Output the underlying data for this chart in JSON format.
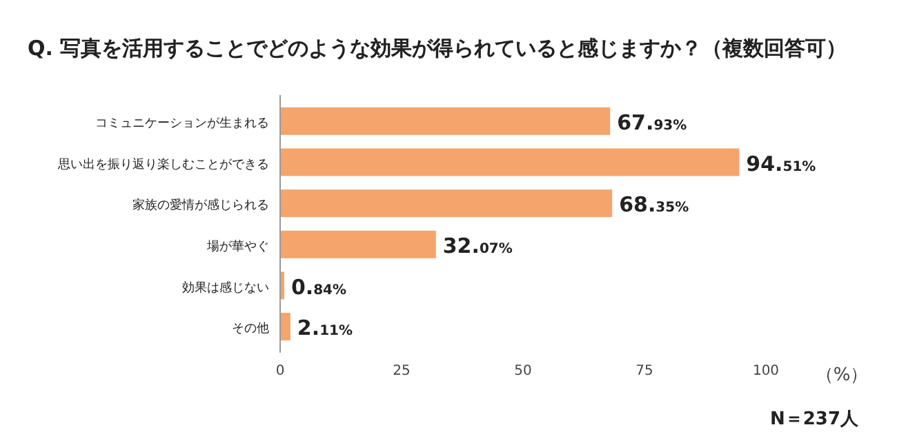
{
  "chart_data": {
    "type": "bar",
    "orientation": "horizontal",
    "title": "Q. 写真を活用することでどのような効果が得られていると感じますか？（複数回答可）",
    "categories": [
      "コミュニケーションが生まれる",
      "思い出を振り返り楽しむことができる",
      "家族の愛情が感じられる",
      "場が華やぐ",
      "効果は感じない",
      "その他"
    ],
    "values": [
      67.93,
      94.51,
      68.35,
      32.07,
      0.84,
      2.11
    ],
    "value_labels": [
      "67.93%",
      "94.51%",
      "68.35%",
      "32.07%",
      "0.84%",
      "2.11%"
    ],
    "color": "#f5a46c",
    "xlim": [
      0,
      100
    ],
    "xticks": [
      0,
      25,
      50,
      75,
      100
    ],
    "grid": false,
    "annotations": [
      "（%）",
      "N＝237人"
    ]
  }
}
